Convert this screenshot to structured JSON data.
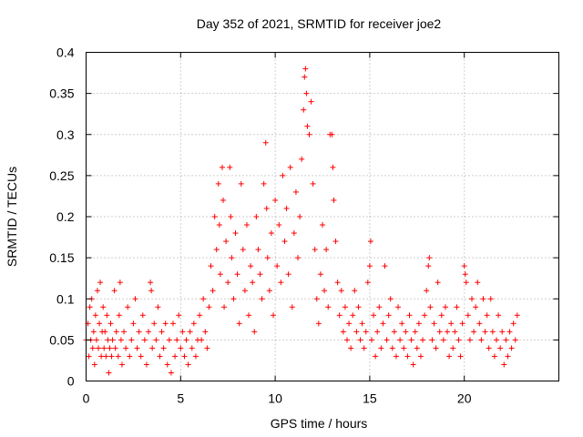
{
  "chart_data": {
    "type": "scatter",
    "title": "Day 352 of 2021, SRMTID for receiver joe2",
    "xlabel": "GPS time / hours",
    "ylabel": "SRMTID / TECUs",
    "xlim": [
      0,
      25
    ],
    "ylim": [
      0,
      0.4
    ],
    "xticks": [
      0,
      5,
      10,
      15,
      20
    ],
    "yticks": [
      0,
      0.05,
      0.1,
      0.15,
      0.2,
      0.25,
      0.3,
      0.35,
      0.4
    ],
    "xtick_labels": [
      "0",
      "5",
      "10",
      "15",
      "20"
    ],
    "ytick_labels": [
      "0",
      "0.05",
      "0.1",
      "0.15",
      "0.2",
      "0.25",
      "0.3",
      "0.35",
      "0.4"
    ],
    "grid": true,
    "marker": "+",
    "color": "#ff0000",
    "series": [
      {
        "name": "SRMTID",
        "points": [
          [
            0.0,
            0.05
          ],
          [
            0.1,
            0.07
          ],
          [
            0.15,
            0.03
          ],
          [
            0.2,
            0.09
          ],
          [
            0.25,
            0.05
          ],
          [
            0.3,
            0.1
          ],
          [
            0.35,
            0.04
          ],
          [
            0.4,
            0.06
          ],
          [
            0.45,
            0.02
          ],
          [
            0.5,
            0.08
          ],
          [
            0.55,
            0.05
          ],
          [
            0.6,
            0.11
          ],
          [
            0.65,
            0.04
          ],
          [
            0.7,
            0.07
          ],
          [
            0.75,
            0.12
          ],
          [
            0.8,
            0.03
          ],
          [
            0.85,
            0.06
          ],
          [
            0.9,
            0.09
          ],
          [
            0.95,
            0.04
          ],
          [
            1.0,
            0.06
          ],
          [
            1.05,
            0.03
          ],
          [
            1.1,
            0.08
          ],
          [
            1.15,
            0.05
          ],
          [
            1.2,
            0.01
          ],
          [
            1.25,
            0.04
          ],
          [
            1.3,
            0.07
          ],
          [
            1.35,
            0.03
          ],
          [
            1.4,
            0.05
          ],
          [
            1.5,
            0.11
          ],
          [
            1.55,
            0.04
          ],
          [
            1.6,
            0.06
          ],
          [
            1.7,
            0.03
          ],
          [
            1.75,
            0.08
          ],
          [
            1.8,
            0.12
          ],
          [
            1.85,
            0.05
          ],
          [
            1.9,
            0.02
          ],
          [
            2.0,
            0.06
          ],
          [
            2.1,
            0.04
          ],
          [
            2.2,
            0.09
          ],
          [
            2.3,
            0.03
          ],
          [
            2.4,
            0.05
          ],
          [
            2.5,
            0.07
          ],
          [
            2.6,
            0.1
          ],
          [
            2.7,
            0.04
          ],
          [
            2.8,
            0.06
          ],
          [
            2.9,
            0.03
          ],
          [
            3.0,
            0.08
          ],
          [
            3.1,
            0.05
          ],
          [
            3.2,
            0.02
          ],
          [
            3.3,
            0.06
          ],
          [
            3.4,
            0.12
          ],
          [
            3.45,
            0.11
          ],
          [
            3.5,
            0.04
          ],
          [
            3.6,
            0.07
          ],
          [
            3.7,
            0.05
          ],
          [
            3.8,
            0.09
          ],
          [
            3.9,
            0.03
          ],
          [
            4.0,
            0.06
          ],
          [
            4.1,
            0.04
          ],
          [
            4.2,
            0.07
          ],
          [
            4.3,
            0.02
          ],
          [
            4.4,
            0.05
          ],
          [
            4.5,
            0.01
          ],
          [
            4.6,
            0.07
          ],
          [
            4.7,
            0.03
          ],
          [
            4.8,
            0.05
          ],
          [
            4.9,
            0.08
          ],
          [
            5.0,
            0.04
          ],
          [
            5.1,
            0.06
          ],
          [
            5.2,
            0.03
          ],
          [
            5.3,
            0.05
          ],
          [
            5.4,
            0.02
          ],
          [
            5.5,
            0.06
          ],
          [
            5.6,
            0.04
          ],
          [
            5.7,
            0.07
          ],
          [
            5.8,
            0.03
          ],
          [
            5.9,
            0.05
          ],
          [
            6.0,
            0.08
          ],
          [
            6.1,
            0.05
          ],
          [
            6.2,
            0.1
          ],
          [
            6.3,
            0.06
          ],
          [
            6.4,
            0.04
          ],
          [
            6.5,
            0.09
          ],
          [
            6.6,
            0.14
          ],
          [
            6.7,
            0.11
          ],
          [
            6.8,
            0.2
          ],
          [
            6.9,
            0.16
          ],
          [
            7.0,
            0.24
          ],
          [
            7.05,
            0.19
          ],
          [
            7.1,
            0.13
          ],
          [
            7.2,
            0.26
          ],
          [
            7.25,
            0.22
          ],
          [
            7.3,
            0.09
          ],
          [
            7.4,
            0.17
          ],
          [
            7.5,
            0.12
          ],
          [
            7.6,
            0.26
          ],
          [
            7.65,
            0.2
          ],
          [
            7.7,
            0.15
          ],
          [
            7.8,
            0.1
          ],
          [
            7.9,
            0.18
          ],
          [
            8.0,
            0.13
          ],
          [
            8.1,
            0.07
          ],
          [
            8.2,
            0.24
          ],
          [
            8.3,
            0.16
          ],
          [
            8.4,
            0.11
          ],
          [
            8.5,
            0.19
          ],
          [
            8.6,
            0.08
          ],
          [
            8.7,
            0.14
          ],
          [
            8.8,
            0.12
          ],
          [
            8.9,
            0.06
          ],
          [
            9.0,
            0.2
          ],
          [
            9.1,
            0.16
          ],
          [
            9.2,
            0.13
          ],
          [
            9.3,
            0.1
          ],
          [
            9.4,
            0.24
          ],
          [
            9.5,
            0.29
          ],
          [
            9.55,
            0.21
          ],
          [
            9.6,
            0.15
          ],
          [
            9.7,
            0.11
          ],
          [
            9.8,
            0.18
          ],
          [
            9.9,
            0.08
          ],
          [
            10.0,
            0.22
          ],
          [
            10.1,
            0.14
          ],
          [
            10.2,
            0.19
          ],
          [
            10.3,
            0.12
          ],
          [
            10.4,
            0.25
          ],
          [
            10.5,
            0.17
          ],
          [
            10.6,
            0.21
          ],
          [
            10.7,
            0.13
          ],
          [
            10.8,
            0.26
          ],
          [
            10.9,
            0.09
          ],
          [
            11.0,
            0.18
          ],
          [
            11.1,
            0.23
          ],
          [
            11.2,
            0.15
          ],
          [
            11.3,
            0.2
          ],
          [
            11.4,
            0.27
          ],
          [
            11.5,
            0.33
          ],
          [
            11.55,
            0.37
          ],
          [
            11.6,
            0.38
          ],
          [
            11.65,
            0.35
          ],
          [
            11.7,
            0.31
          ],
          [
            11.8,
            0.3
          ],
          [
            11.9,
            0.34
          ],
          [
            12.0,
            0.24
          ],
          [
            12.1,
            0.16
          ],
          [
            12.2,
            0.1
          ],
          [
            12.3,
            0.07
          ],
          [
            12.4,
            0.13
          ],
          [
            12.5,
            0.19
          ],
          [
            12.6,
            0.11
          ],
          [
            12.7,
            0.16
          ],
          [
            12.8,
            0.09
          ],
          [
            12.9,
            0.3
          ],
          [
            13.0,
            0.3
          ],
          [
            13.05,
            0.26
          ],
          [
            13.1,
            0.22
          ],
          [
            13.2,
            0.17
          ],
          [
            13.3,
            0.12
          ],
          [
            13.4,
            0.08
          ],
          [
            13.5,
            0.11
          ],
          [
            13.6,
            0.06
          ],
          [
            13.7,
            0.09
          ],
          [
            13.8,
            0.05
          ],
          [
            13.9,
            0.07
          ],
          [
            14.0,
            0.04
          ],
          [
            14.1,
            0.08
          ],
          [
            14.2,
            0.11
          ],
          [
            14.3,
            0.06
          ],
          [
            14.4,
            0.09
          ],
          [
            14.5,
            0.05
          ],
          [
            14.6,
            0.07
          ],
          [
            14.7,
            0.04
          ],
          [
            14.8,
            0.06
          ],
          [
            14.9,
            0.12
          ],
          [
            15.0,
            0.14
          ],
          [
            15.05,
            0.17
          ],
          [
            15.1,
            0.05
          ],
          [
            15.2,
            0.08
          ],
          [
            15.3,
            0.03
          ],
          [
            15.4,
            0.06
          ],
          [
            15.5,
            0.09
          ],
          [
            15.6,
            0.04
          ],
          [
            15.7,
            0.07
          ],
          [
            15.8,
            0.14
          ],
          [
            15.9,
            0.05
          ],
          [
            16.0,
            0.08
          ],
          [
            16.1,
            0.1
          ],
          [
            16.2,
            0.04
          ],
          [
            16.3,
            0.06
          ],
          [
            16.4,
            0.03
          ],
          [
            16.5,
            0.09
          ],
          [
            16.6,
            0.05
          ],
          [
            16.7,
            0.07
          ],
          [
            16.8,
            0.04
          ],
          [
            16.9,
            0.06
          ],
          [
            17.0,
            0.03
          ],
          [
            17.1,
            0.08
          ],
          [
            17.2,
            0.05
          ],
          [
            17.3,
            0.02
          ],
          [
            17.4,
            0.06
          ],
          [
            17.5,
            0.04
          ],
          [
            17.6,
            0.07
          ],
          [
            17.7,
            0.03
          ],
          [
            17.8,
            0.05
          ],
          [
            17.9,
            0.08
          ],
          [
            18.0,
            0.11
          ],
          [
            18.1,
            0.14
          ],
          [
            18.15,
            0.15
          ],
          [
            18.2,
            0.09
          ],
          [
            18.3,
            0.05
          ],
          [
            18.4,
            0.07
          ],
          [
            18.5,
            0.04
          ],
          [
            18.6,
            0.12
          ],
          [
            18.7,
            0.06
          ],
          [
            18.8,
            0.08
          ],
          [
            18.9,
            0.05
          ],
          [
            19.0,
            0.09
          ],
          [
            19.1,
            0.06
          ],
          [
            19.2,
            0.03
          ],
          [
            19.3,
            0.07
          ],
          [
            19.4,
            0.04
          ],
          [
            19.5,
            0.06
          ],
          [
            19.6,
            0.09
          ],
          [
            19.7,
            0.05
          ],
          [
            19.8,
            0.03
          ],
          [
            19.9,
            0.07
          ],
          [
            20.0,
            0.14
          ],
          [
            20.05,
            0.13
          ],
          [
            20.1,
            0.12
          ],
          [
            20.2,
            0.08
          ],
          [
            20.3,
            0.05
          ],
          [
            20.4,
            0.1
          ],
          [
            20.5,
            0.06
          ],
          [
            20.6,
            0.09
          ],
          [
            20.7,
            0.12
          ],
          [
            20.8,
            0.07
          ],
          [
            20.9,
            0.05
          ],
          [
            21.0,
            0.1
          ],
          [
            21.1,
            0.06
          ],
          [
            21.2,
            0.08
          ],
          [
            21.3,
            0.04
          ],
          [
            21.4,
            0.1
          ],
          [
            21.5,
            0.06
          ],
          [
            21.6,
            0.03
          ],
          [
            21.7,
            0.05
          ],
          [
            21.8,
            0.08
          ],
          [
            21.9,
            0.04
          ],
          [
            22.0,
            0.06
          ],
          [
            22.1,
            0.02
          ],
          [
            22.2,
            0.05
          ],
          [
            22.3,
            0.03
          ],
          [
            22.4,
            0.06
          ],
          [
            22.5,
            0.04
          ],
          [
            22.6,
            0.07
          ],
          [
            22.7,
            0.05
          ],
          [
            22.8,
            0.08
          ]
        ]
      }
    ]
  }
}
